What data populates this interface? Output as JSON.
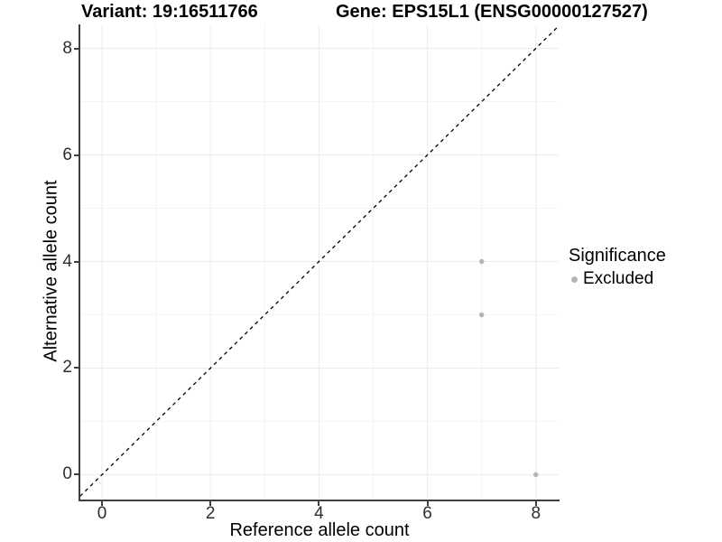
{
  "chart_data": {
    "type": "scatter",
    "title_left": "Variant: 19:16511766",
    "title_right": "Gene: EPS15L1 (ENSG00000127527)",
    "xlabel": "Reference allele count",
    "ylabel": "Alternative allele count",
    "xlim": [
      -0.4,
      8.42
    ],
    "ylim": [
      -0.45,
      8.45
    ],
    "x_major_ticks": [
      0,
      2,
      4,
      6,
      8
    ],
    "x_minor_ticks": [
      1,
      3,
      5,
      7
    ],
    "y_major_ticks": [
      0,
      2,
      4,
      6,
      8
    ],
    "y_minor_ticks": [
      1,
      3,
      5,
      7
    ],
    "grid": true,
    "identity_line": {
      "type": "y=x",
      "style": "dashed",
      "color": "#000000"
    },
    "series": [
      {
        "name": "Excluded",
        "color": "#b5b5b5",
        "points": [
          [
            7,
            4
          ],
          [
            7,
            3
          ],
          [
            8,
            0
          ]
        ]
      }
    ],
    "legend": {
      "title": "Significance",
      "position": "right",
      "entries": [
        {
          "label": "Excluded",
          "color": "#b5b5b5"
        }
      ]
    },
    "colors": {
      "axis_line": "#3f3f3f",
      "tick_label": "#2e2e2e",
      "grid_major": "#ececec",
      "grid_minor": "#f5f5f5",
      "background": "#ffffff"
    }
  }
}
